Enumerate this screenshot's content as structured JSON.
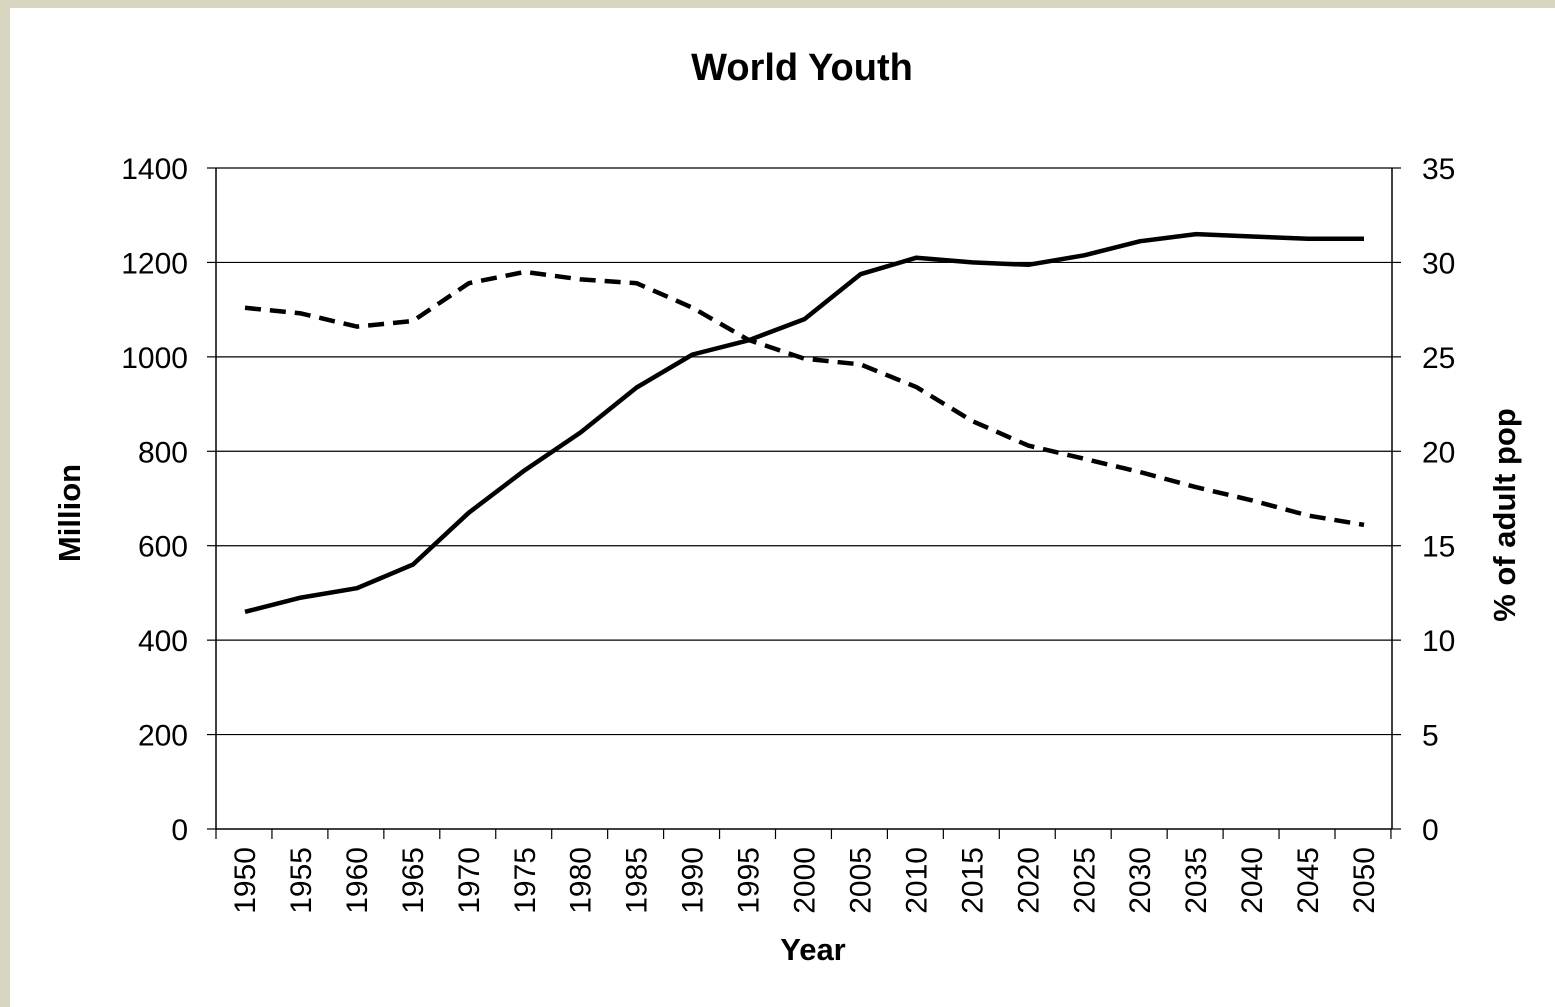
{
  "colors": {
    "background": "#d8d5c1",
    "panel": "#ffffff",
    "ink": "#000000"
  },
  "chart_data": {
    "type": "line",
    "title": "World Youth",
    "xlabel": "Year",
    "ylabel": "Million",
    "y2label": "% of adult pop",
    "ylim": [
      0,
      1400
    ],
    "y2lim": [
      0,
      35
    ],
    "yticks": [
      0,
      200,
      400,
      600,
      800,
      1000,
      1200,
      1400
    ],
    "y2ticks": [
      0,
      5,
      10,
      15,
      20,
      25,
      30,
      35
    ],
    "grid": true,
    "x": [
      1950,
      1955,
      1960,
      1965,
      1970,
      1975,
      1980,
      1985,
      1990,
      1995,
      2000,
      2005,
      2010,
      2015,
      2020,
      2025,
      2030,
      2035,
      2040,
      2045,
      2050
    ],
    "series": [
      {
        "axis": "left",
        "style": "solid",
        "values": [
          460,
          490,
          510,
          560,
          670,
          760,
          840,
          935,
          1005,
          1035,
          1080,
          1175,
          1210,
          1200,
          1195,
          1215,
          1245,
          1260,
          1255,
          1250,
          1250
        ]
      },
      {
        "axis": "right",
        "style": "dashed",
        "values": [
          27.6,
          27.3,
          26.6,
          26.9,
          28.9,
          29.5,
          29.1,
          28.9,
          27.6,
          25.9,
          24.9,
          24.6,
          23.4,
          21.6,
          20.3,
          19.6,
          18.9,
          18.1,
          17.4,
          16.6,
          16.1
        ]
      }
    ]
  }
}
